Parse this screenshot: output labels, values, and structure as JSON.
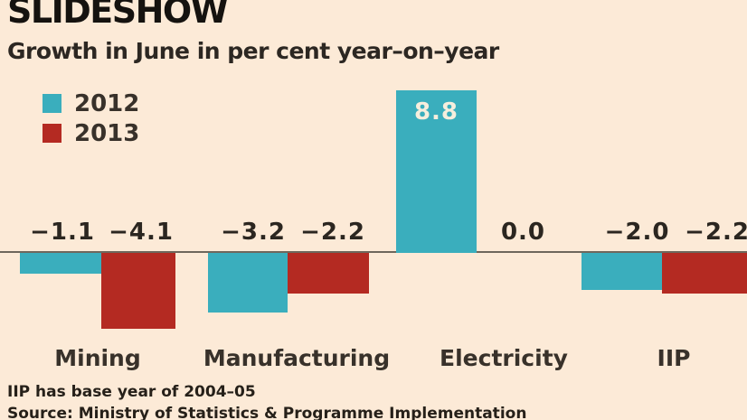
{
  "page": {
    "title": "SLIDESHOW",
    "subtitle": "Growth in June in per cent year–on–year",
    "footnote": "IIP has base year of 2004–05",
    "source": "Source: Ministry of Statistics & Programme Implementation"
  },
  "colors": {
    "background": "#fcead7",
    "series_2012": "#3aaebd",
    "series_2013": "#b42a22",
    "axis_line": "#6e675c",
    "text_dark": "#2b2620",
    "bar_label_light": "#f6eedd"
  },
  "chart_data": {
    "type": "bar",
    "title": "Growth in June in per cent year-on-year",
    "categories": [
      "Mining",
      "Manufacturing",
      "Electricity",
      "IIP"
    ],
    "series": [
      {
        "name": "2012",
        "color": "#3aaebd",
        "values": [
          -1.1,
          -3.2,
          8.8,
          -2.0
        ],
        "labels": [
          "−1.1",
          "−3.2",
          "8.8",
          "−2.0"
        ]
      },
      {
        "name": "2013",
        "color": "#b42a22",
        "values": [
          -4.1,
          -2.2,
          0.0,
          -2.2
        ],
        "labels": [
          "−4.1",
          "−2.2",
          "0.0",
          "−2.2"
        ]
      }
    ],
    "xlabel": "",
    "ylabel": "per cent year-on-year",
    "ylim": [
      -5,
      10
    ],
    "baseline": 0,
    "grid": false,
    "legend_position": "top-left",
    "value_labels_shown": true
  }
}
